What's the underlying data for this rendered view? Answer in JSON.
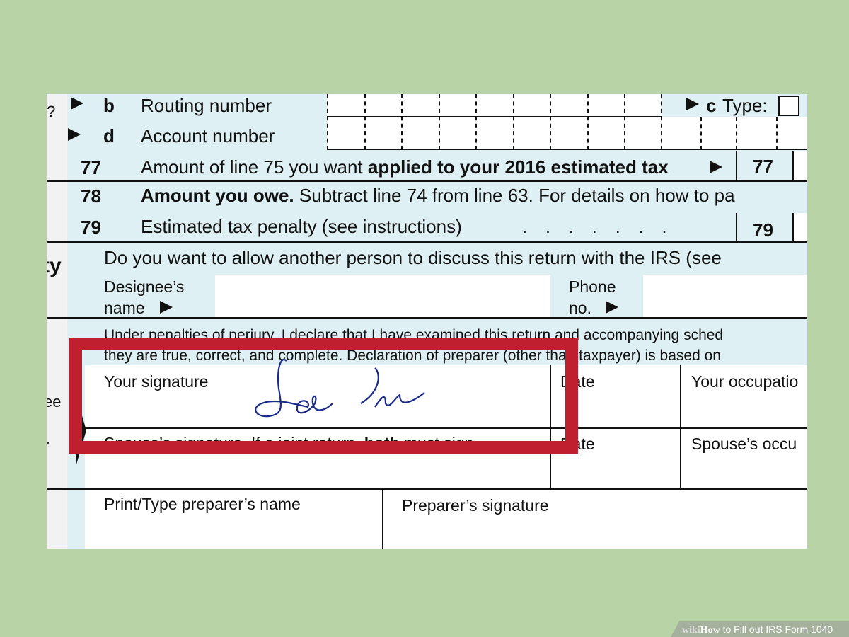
{
  "form": {
    "cut_left_q": "t?",
    "row_b": {
      "letter": "b",
      "label": "Routing number"
    },
    "row_c": {
      "letter": "c",
      "label": "Type:"
    },
    "row_d": {
      "letter": "d",
      "label": "Account number"
    },
    "line77": {
      "num": "77",
      "text_plain": "Amount of line 75 you want ",
      "text_bold": "applied to your 2016 estimated tax",
      "box": "77"
    },
    "line78": {
      "num": "78",
      "text_bold": "Amount you owe.",
      "text_plain": " Subtract line 74 from line 63. For details on how to pa"
    },
    "line79": {
      "num": "79",
      "text": "Estimated tax penalty (see instructions)",
      "dots": ".   .   .   .   .   .   .",
      "box": "79"
    },
    "third_party": {
      "side": "ty",
      "question": "Do you want to allow another person to discuss this return with the IRS (see",
      "designee_label_1": "Designee’s",
      "designee_label_2": "name",
      "phone_label_1": "Phone",
      "phone_label_2": "no."
    },
    "sign": {
      "side_1": "ee",
      "side_2": "r",
      "perjury_1": "Under penalties of perjury, I declare that I have examined this return and accompanying sched",
      "perjury_2": "they are true, correct, and complete. Declaration of preparer (other than taxpayer) is based on",
      "your_signature": "Your signature",
      "date": "Date",
      "your_occupation": "Your occupatio",
      "spouse_signature_plain": "Spouse’s signature. If a joint return, ",
      "spouse_signature_bold": "both",
      "spouse_signature_end": " must sign.",
      "date2": "Date",
      "spouse_occupation": "Spouse’s occu"
    },
    "preparer": {
      "name_label": "Print/Type preparer’s name",
      "signature_label": "Preparer’s signature"
    }
  },
  "highlight": {
    "color": "#c01f2f"
  },
  "signature_ink": "#1a2a8a",
  "watermark": {
    "wiki": "wiki",
    "how": "How",
    "title": " to Fill out IRS Form 1040"
  }
}
